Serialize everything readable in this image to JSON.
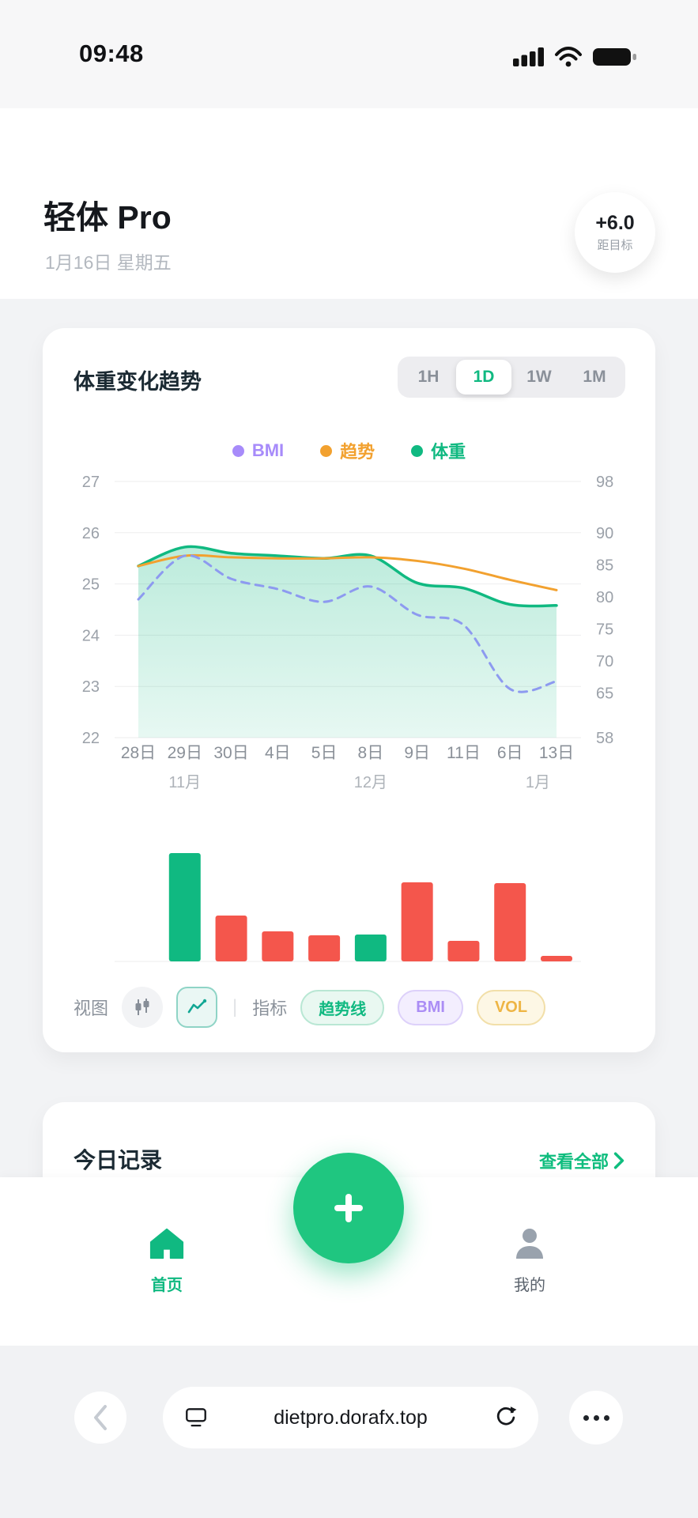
{
  "status_bar": {
    "time": "09:48"
  },
  "header": {
    "app_title": "轻体 Pro",
    "date": "1月16日 星期五",
    "goal_badge": {
      "value": "+6.0",
      "label": "距目标"
    }
  },
  "trend_card": {
    "title": "体重变化趋势",
    "range_tabs": [
      {
        "label": "1H",
        "active": false
      },
      {
        "label": "1D",
        "active": true
      },
      {
        "label": "1W",
        "active": false
      },
      {
        "label": "1M",
        "active": false
      }
    ],
    "legend": [
      {
        "label": "BMI",
        "color": "#a78bfa"
      },
      {
        "label": "趋势",
        "color": "#f2a12f"
      },
      {
        "label": "体重",
        "color": "#10b981"
      }
    ],
    "view_controls": {
      "view_label": "视图",
      "divider": "|",
      "indicator_label": "指标",
      "indicator_pills": [
        {
          "label": "趋势线",
          "text_color": "#10b981",
          "bg": "#e9f8f1",
          "border": "#b9e7d4"
        },
        {
          "label": "BMI",
          "text_color": "#ab8df5",
          "bg": "#f3eefe",
          "border": "#ddd1fa"
        },
        {
          "label": "VOL",
          "text_color": "#eeb544",
          "bg": "#fdf7e5",
          "border": "#f2dfa9"
        }
      ]
    }
  },
  "chart_data": {
    "type": "line",
    "title": "体重变化趋势",
    "x_labels": [
      "28日",
      "29日",
      "30日",
      "4日",
      "5日",
      "8日",
      "9日",
      "11日",
      "6日",
      "13日"
    ],
    "month_labels": [
      {
        "text": "11月",
        "pos": 1
      },
      {
        "text": "12月",
        "pos": 5
      },
      {
        "text": "1月",
        "pos": 8.6
      }
    ],
    "left_axis": {
      "ticks": [
        27,
        26,
        25,
        24,
        23,
        22
      ],
      "range": [
        22,
        27
      ]
    },
    "right_axis": {
      "ticks": [
        98,
        90,
        85,
        80,
        75,
        70,
        65,
        58
      ],
      "positions": [
        0,
        0.2,
        0.325,
        0.45,
        0.575,
        0.7,
        0.825,
        1
      ]
    },
    "grid": true,
    "series": [
      {
        "name": "体重",
        "style": "area",
        "color": "#10b981",
        "values": [
          25.35,
          25.72,
          25.6,
          25.55,
          25.5,
          25.55,
          25.02,
          24.92,
          24.6,
          24.58
        ]
      },
      {
        "name": "趋势",
        "style": "solid",
        "color": "#f2a12f",
        "values": [
          25.35,
          25.55,
          25.52,
          25.5,
          25.5,
          25.52,
          25.45,
          25.3,
          25.08,
          24.88
        ]
      },
      {
        "name": "BMI",
        "style": "dashed",
        "color": "#8d9af0",
        "values": [
          24.7,
          25.55,
          25.1,
          24.9,
          24.65,
          24.95,
          24.4,
          24.2,
          22.95,
          23.1
        ]
      }
    ],
    "volume": {
      "align_from_index": 1,
      "heights": [
        137,
        58,
        38,
        33,
        34,
        100,
        26,
        99,
        7
      ],
      "colors": [
        "#10b981",
        "#f4564c",
        "#f4564c",
        "#f4564c",
        "#10b981",
        "#f4564c",
        "#f4564c",
        "#f4564c",
        "#f4564c"
      ]
    }
  },
  "today_card": {
    "title": "今日记录",
    "view_all": "查看全部"
  },
  "tab_bar": {
    "items": [
      {
        "label": "首页",
        "active": true
      },
      {
        "label": "我的",
        "active": false
      }
    ]
  },
  "browser_bar": {
    "url": "dietpro.dorafx.top"
  }
}
